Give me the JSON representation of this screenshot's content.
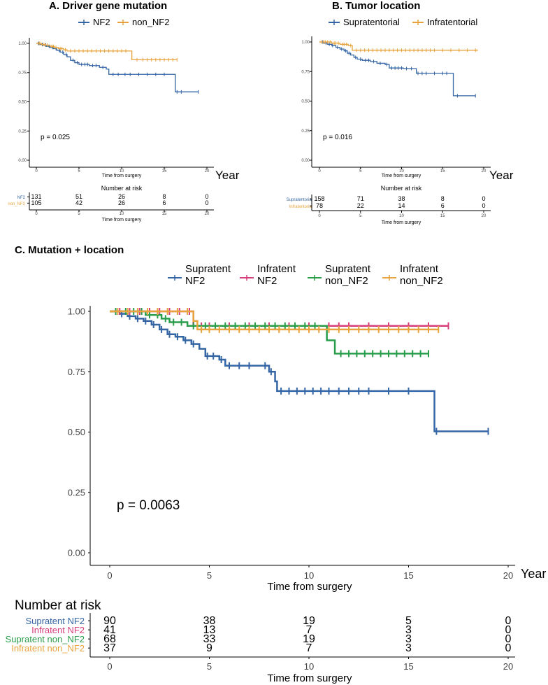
{
  "figure": {
    "year_label": "Year",
    "risk_title": "Number at risk"
  },
  "chart_data": [
    {
      "id": "A",
      "type": "line",
      "title": "A. Driver gene mutation",
      "xlabel": "Time from surgery",
      "ylabel": "",
      "xlim": [
        0,
        20
      ],
      "ylim": [
        0,
        1
      ],
      "xticks": [
        0,
        5,
        10,
        15,
        20
      ],
      "yticks": [
        0.0,
        0.25,
        0.5,
        0.75,
        1.0
      ],
      "ytick_labels": [
        "0.00",
        "0.25",
        "0.50",
        "0.75",
        "1.00"
      ],
      "pvalue": "p = 0.025",
      "legend": "top",
      "series": [
        {
          "name": "NF2",
          "color": "#3465a4",
          "steps": [
            [
              0,
              1.0
            ],
            [
              0.4,
              0.99
            ],
            [
              0.8,
              0.985
            ],
            [
              1.2,
              0.975
            ],
            [
              1.6,
              0.965
            ],
            [
              2.0,
              0.955
            ],
            [
              2.4,
              0.94
            ],
            [
              2.8,
              0.925
            ],
            [
              3.2,
              0.905
            ],
            [
              3.6,
              0.885
            ],
            [
              4.0,
              0.855
            ],
            [
              4.5,
              0.835
            ],
            [
              5.0,
              0.82
            ],
            [
              6.2,
              0.81
            ],
            [
              7.4,
              0.795
            ],
            [
              8.2,
              0.78
            ],
            [
              8.5,
              0.735
            ],
            [
              16.2,
              0.735
            ],
            [
              16.3,
              0.585
            ],
            [
              19.0,
              0.585
            ]
          ],
          "censor": [
            0.3,
            0.7,
            1.1,
            1.5,
            1.9,
            2.3,
            2.7,
            3.1,
            3.5,
            4.3,
            4.8,
            5.3,
            5.7,
            6.0,
            6.6,
            7.0,
            7.8,
            9.0,
            9.6,
            10.4,
            11.0,
            12.0,
            13.0,
            14.0,
            15.0,
            16.5,
            17.0,
            19.0
          ]
        },
        {
          "name": "non_NF2",
          "color": "#e8a33d",
          "steps": [
            [
              0,
              1.0
            ],
            [
              0.6,
              0.99
            ],
            [
              1.1,
              0.985
            ],
            [
              1.6,
              0.975
            ],
            [
              2.1,
              0.965
            ],
            [
              2.6,
              0.955
            ],
            [
              3.2,
              0.945
            ],
            [
              3.6,
              0.935
            ],
            [
              10.8,
              0.935
            ],
            [
              11.2,
              0.86
            ],
            [
              16.5,
              0.86
            ]
          ],
          "censor": [
            0.2,
            0.4,
            0.8,
            1.0,
            1.3,
            1.8,
            2.0,
            2.3,
            2.8,
            3.0,
            3.4,
            4.0,
            4.5,
            5.0,
            5.5,
            6.0,
            6.5,
            7.0,
            7.5,
            8.0,
            8.5,
            9.0,
            9.5,
            10.0,
            10.5,
            11.8,
            12.5,
            13.0,
            13.5,
            14.0,
            14.5,
            15.0,
            15.5,
            16.0,
            16.5
          ]
        }
      ],
      "risk_table": {
        "title": "Number at risk",
        "xlabel": "Time from surgery",
        "rows": [
          {
            "name": "NF2",
            "color": "#3465a4",
            "values": [
              "131",
              "51",
              "26",
              "8",
              "0"
            ]
          },
          {
            "name": "non_NF2",
            "color": "#e8a33d",
            "values": [
              "105",
              "42",
              "26",
              "6",
              "0"
            ]
          }
        ]
      }
    },
    {
      "id": "B",
      "type": "line",
      "title": "B. Tumor location",
      "xlabel": "Time from surgery",
      "ylabel": "",
      "xlim": [
        0,
        20
      ],
      "ylim": [
        0,
        1
      ],
      "xticks": [
        0,
        5,
        10,
        15,
        20
      ],
      "yticks": [
        0.0,
        0.25,
        0.5,
        0.75,
        1.0
      ],
      "ytick_labels": [
        "0.00",
        "0.25",
        "0.50",
        "0.75",
        "1.00"
      ],
      "pvalue": "p = 0.016",
      "legend": "top",
      "series": [
        {
          "name": "Supratentorial",
          "color": "#3465a4",
          "steps": [
            [
              0,
              1.0
            ],
            [
              0.5,
              0.99
            ],
            [
              1.0,
              0.98
            ],
            [
              1.5,
              0.97
            ],
            [
              2.0,
              0.955
            ],
            [
              2.5,
              0.94
            ],
            [
              3.0,
              0.925
            ],
            [
              3.4,
              0.905
            ],
            [
              3.8,
              0.89
            ],
            [
              4.2,
              0.87
            ],
            [
              4.6,
              0.855
            ],
            [
              5.2,
              0.845
            ],
            [
              6.2,
              0.835
            ],
            [
              7.0,
              0.82
            ],
            [
              8.0,
              0.81
            ],
            [
              8.5,
              0.78
            ],
            [
              10.2,
              0.775
            ],
            [
              11.8,
              0.735
            ],
            [
              16.2,
              0.735
            ],
            [
              16.3,
              0.545
            ],
            [
              19.0,
              0.545
            ]
          ],
          "censor": [
            0.4,
            0.8,
            1.2,
            1.6,
            2.2,
            2.7,
            3.2,
            3.6,
            4.4,
            5.0,
            5.6,
            6.0,
            6.6,
            7.4,
            8.2,
            8.8,
            9.2,
            9.6,
            10.0,
            10.6,
            11.2,
            12.0,
            12.5,
            13.0,
            14.0,
            15.0,
            15.5,
            16.8,
            19.0
          ]
        },
        {
          "name": "Infratentorial",
          "color": "#e8a33d",
          "steps": [
            [
              0,
              1.0
            ],
            [
              1.5,
              0.99
            ],
            [
              2.5,
              0.98
            ],
            [
              3.5,
              0.97
            ],
            [
              4.0,
              0.93
            ],
            [
              19.3,
              0.93
            ]
          ],
          "censor": [
            0.2,
            0.5,
            0.7,
            1.0,
            1.3,
            1.8,
            2.0,
            2.3,
            2.8,
            3.0,
            3.3,
            3.8,
            4.5,
            5.0,
            5.5,
            6.0,
            6.5,
            7.0,
            7.5,
            8.0,
            8.5,
            9.0,
            9.5,
            10.0,
            10.5,
            11.0,
            11.5,
            12.0,
            12.5,
            13.0,
            13.5,
            14.0,
            15.0,
            16.0,
            17.0,
            18.0,
            19.0
          ]
        }
      ],
      "risk_table": {
        "title": "Number at risk",
        "xlabel": "Time from surgery",
        "rows": [
          {
            "name": "Supratentorial",
            "color": "#3465a4",
            "values": [
              "158",
              "71",
              "38",
              "8",
              "0"
            ]
          },
          {
            "name": "Infratentorial",
            "color": "#e8a33d",
            "values": [
              "78",
              "22",
              "14",
              "6",
              "0"
            ]
          }
        ]
      }
    },
    {
      "id": "C",
      "type": "line",
      "title": "C. Mutation + location",
      "xlabel": "Time from surgery",
      "ylabel": "",
      "xlim": [
        0,
        20
      ],
      "ylim": [
        0,
        1
      ],
      "xticks": [
        0,
        5,
        10,
        15,
        20
      ],
      "yticks": [
        0.0,
        0.25,
        0.5,
        0.75,
        1.0
      ],
      "ytick_labels": [
        "0.00",
        "0.25",
        "0.50",
        "0.75",
        "1.00"
      ],
      "pvalue": "p = 0.0063",
      "legend": "top",
      "series": [
        {
          "name": "Supratent NF2",
          "legend_lines": [
            "Supratent",
            "NF2"
          ],
          "color": "#3465a4",
          "steps": [
            [
              0,
              1.0
            ],
            [
              0.5,
              0.99
            ],
            [
              0.9,
              0.98
            ],
            [
              1.3,
              0.97
            ],
            [
              1.7,
              0.96
            ],
            [
              2.1,
              0.945
            ],
            [
              2.5,
              0.925
            ],
            [
              2.9,
              0.905
            ],
            [
              3.3,
              0.895
            ],
            [
              3.7,
              0.88
            ],
            [
              4.1,
              0.865
            ],
            [
              4.5,
              0.845
            ],
            [
              4.8,
              0.815
            ],
            [
              5.5,
              0.8
            ],
            [
              5.8,
              0.775
            ],
            [
              7.6,
              0.775
            ],
            [
              8.0,
              0.75
            ],
            [
              8.3,
              0.71
            ],
            [
              8.4,
              0.67
            ],
            [
              16.2,
              0.67
            ],
            [
              16.3,
              0.503
            ],
            [
              19.0,
              0.503
            ]
          ],
          "censor": [
            0.6,
            1.0,
            1.4,
            1.8,
            2.2,
            2.6,
            3.0,
            3.4,
            3.8,
            4.2,
            4.9,
            5.2,
            5.6,
            6.0,
            6.5,
            7.0,
            7.8,
            8.1,
            8.6,
            9.0,
            9.4,
            9.8,
            10.2,
            10.6,
            11.0,
            11.5,
            12.0,
            12.5,
            13.0,
            14.0,
            15.0,
            16.4,
            19.0
          ]
        },
        {
          "name": "Infratent NF2",
          "legend_lines": [
            "Infratent",
            "NF2"
          ],
          "color": "#d63f7b",
          "steps": [
            [
              0,
              1.0
            ],
            [
              4.1,
              1.0
            ],
            [
              4.2,
              0.94
            ],
            [
              17.0,
              0.94
            ]
          ],
          "censor": [
            0.5,
            1.0,
            1.5,
            2.0,
            2.5,
            3.0,
            3.5,
            4.0,
            4.6,
            5.0,
            6.0,
            7.0,
            8.0,
            9.0,
            10.0,
            11.0,
            11.5,
            12.0,
            13.0,
            14.0,
            15.0,
            16.0,
            17.0
          ]
        },
        {
          "name": "Supratent non_NF2",
          "legend_lines": [
            "Supratent",
            "non_NF2"
          ],
          "color": "#2a9d4b",
          "steps": [
            [
              0,
              1.0
            ],
            [
              1.8,
              0.985
            ],
            [
              2.6,
              0.97
            ],
            [
              3.0,
              0.955
            ],
            [
              3.9,
              0.94
            ],
            [
              10.8,
              0.94
            ],
            [
              10.9,
              0.88
            ],
            [
              11.3,
              0.825
            ],
            [
              16.0,
              0.825
            ]
          ],
          "censor": [
            0.3,
            0.8,
            1.2,
            1.6,
            2.0,
            2.4,
            2.8,
            3.2,
            3.6,
            4.2,
            4.8,
            5.3,
            5.8,
            6.3,
            6.8,
            7.3,
            7.8,
            8.3,
            8.8,
            9.3,
            9.8,
            10.3,
            11.6,
            12.0,
            12.4,
            12.8,
            13.2,
            13.6,
            14.0,
            14.4,
            14.8,
            15.2,
            15.6,
            16.0
          ]
        },
        {
          "name": "Infratent non_NF2",
          "legend_lines": [
            "Infratent",
            "non_NF2"
          ],
          "color": "#e8a33d",
          "steps": [
            [
              0,
              1.0
            ],
            [
              4.1,
              1.0
            ],
            [
              4.2,
              0.96
            ],
            [
              4.4,
              0.925
            ],
            [
              16.5,
              0.925
            ]
          ],
          "censor": [
            0.4,
            0.9,
            1.4,
            1.9,
            2.4,
            2.9,
            3.4,
            3.9,
            4.6,
            5.0,
            5.5,
            6.0,
            6.5,
            7.0,
            7.5,
            8.0,
            8.5,
            9.0,
            9.5,
            10.0,
            10.5,
            11.0,
            11.5,
            12.0,
            12.5,
            13.0,
            13.5,
            14.0,
            14.5,
            15.0,
            15.5,
            16.0,
            16.5
          ]
        }
      ],
      "risk_table": {
        "title": "Number at risk",
        "xlabel": "Time from surgery",
        "rows": [
          {
            "name": "Supratent NF2",
            "color": "#3465a4",
            "values": [
              "90",
              "38",
              "19",
              "5",
              "0"
            ]
          },
          {
            "name": "Infratent NF2",
            "color": "#d63f7b",
            "values": [
              "41",
              "13",
              "7",
              "3",
              "0"
            ]
          },
          {
            "name": "Supratent non_NF2",
            "color": "#2a9d4b",
            "values": [
              "68",
              "33",
              "19",
              "3",
              "0"
            ]
          },
          {
            "name": "Infratent non_NF2",
            "color": "#e8a33d",
            "values": [
              "37",
              "9",
              "7",
              "3",
              "0"
            ]
          }
        ]
      }
    }
  ]
}
